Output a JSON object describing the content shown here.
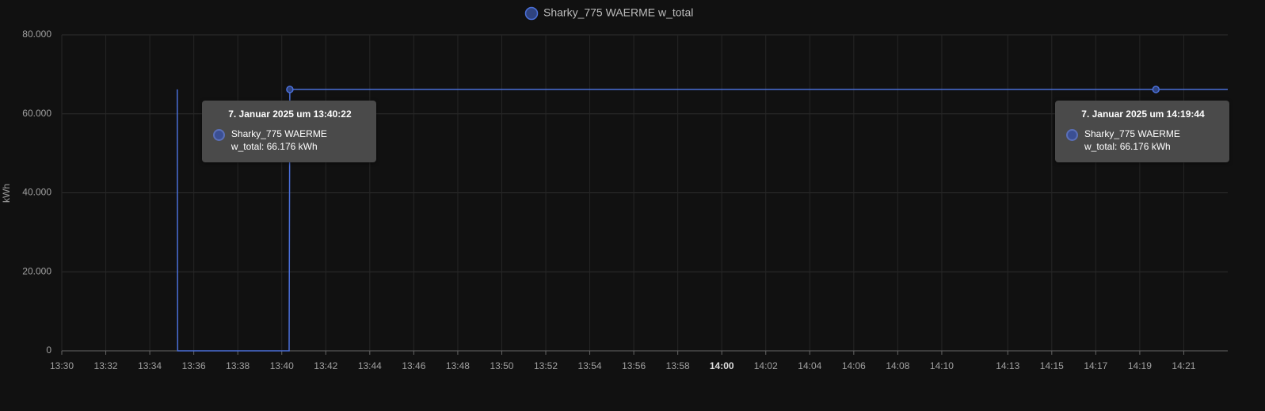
{
  "chart_data": {
    "type": "line",
    "ylabel": "kWh",
    "x": [
      "13:35:15",
      "13:35:16",
      "13:40:20",
      "13:40:21",
      "13:40:22",
      "14:19:44",
      "14:23:00"
    ],
    "series": [
      {
        "name": "Sharky_775 WAERME w_total",
        "color": "#4a6fd8",
        "values": [
          66.176,
          0,
          0,
          39,
          66.176,
          66.176,
          66.176
        ]
      }
    ],
    "xlim": [
      "13:30:00",
      "14:23:00"
    ],
    "xticks": [
      "13:30",
      "13:32",
      "13:34",
      "13:36",
      "13:38",
      "13:40",
      "13:42",
      "13:44",
      "13:46",
      "13:48",
      "13:50",
      "13:52",
      "13:54",
      "13:56",
      "13:58",
      "14:00",
      "14:02",
      "14:04",
      "14:06",
      "14:08",
      "14:10",
      "14:13",
      "14:15",
      "14:17",
      "14:19",
      "14:21"
    ],
    "ylim": [
      0,
      80
    ],
    "yticks": [
      0,
      {
        "value": 20,
        "label": "20.000"
      },
      {
        "value": 40,
        "label": "40.000"
      },
      {
        "value": 60,
        "label": "60.000"
      },
      {
        "value": 80,
        "label": "80.000"
      }
    ],
    "grid": true,
    "tooltips": [
      {
        "title": "7. Januar 2025 um 13:40:22",
        "text": "Sharky_775 WAERME w_total: 66.176 kWh"
      },
      {
        "title": "7. Januar 2025 um 14:19:44",
        "text": "Sharky_775 WAERME w_total: 66.176 kWh"
      }
    ]
  }
}
